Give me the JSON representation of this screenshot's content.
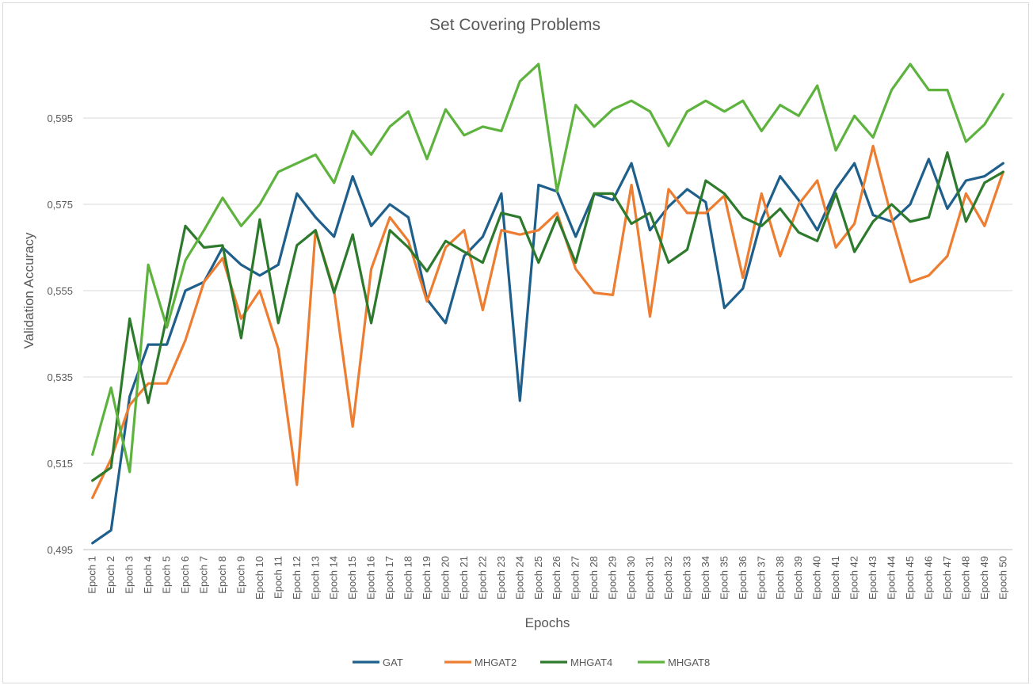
{
  "chart_data": {
    "type": "line",
    "title": "Set Covering Problems",
    "xlabel": "Epochs",
    "ylabel": "Validation Accuracy",
    "ylim": [
      0.495,
      0.6
    ],
    "yticks": [
      "0,495",
      "0,515",
      "0,535",
      "0,555",
      "0,575",
      "0,595"
    ],
    "ytick_values": [
      0.495,
      0.515,
      0.535,
      0.555,
      0.575,
      0.595
    ],
    "grid": true,
    "legend_position": "bottom",
    "categories": [
      "Epoch 1",
      "Epoch 2",
      "Epoch 3",
      "Epoch 4",
      "Epoch 5",
      "Epoch 6",
      "Epoch 7",
      "Epoch 8",
      "Epoch 9",
      "Epoch 10",
      "Epoch 11",
      "Epoch 12",
      "Epoch 13",
      "Epoch 14",
      "Epoch 15",
      "Epoch 16",
      "Epoch 17",
      "Epoch 18",
      "Epoch 19",
      "Epoch 20",
      "Epoch 21",
      "Epoch 22",
      "Epoch 23",
      "Epoch 24",
      "Epoch 25",
      "Epoch 26",
      "Epoch 27",
      "Epoch 28",
      "Epoch 29",
      "Epoch 30",
      "Epoch 31",
      "Epoch 32",
      "Epoch 33",
      "Epoch 34",
      "Epoch 35",
      "Epoch 36",
      "Epoch 37",
      "Epoch 38",
      "Epoch 39",
      "Epoch 40",
      "Epoch 41",
      "Epoch 42",
      "Epoch 43",
      "Epoch 44",
      "Epoch 45",
      "Epoch 46",
      "Epoch 47",
      "Epoch 48",
      "Epoch 49",
      "Epoch 50"
    ],
    "series": [
      {
        "name": "GAT",
        "color": "#1f5f8b",
        "values": [
          0.4965,
          0.4995,
          0.5305,
          0.5425,
          0.5425,
          0.555,
          0.557,
          0.565,
          0.561,
          0.5585,
          0.561,
          0.5775,
          0.572,
          0.5675,
          0.5815,
          0.57,
          0.575,
          0.572,
          0.553,
          0.5475,
          0.563,
          0.5675,
          0.5775,
          0.5295,
          0.5795,
          0.578,
          0.5675,
          0.5775,
          0.576,
          0.5845,
          0.569,
          0.5745,
          0.5785,
          0.5755,
          0.551,
          0.5555,
          0.5715,
          0.5815,
          0.576,
          0.569,
          0.5785,
          0.5845,
          0.5725,
          0.571,
          0.575,
          0.5855,
          0.574,
          0.5805,
          0.5815,
          0.5845
        ]
      },
      {
        "name": "MHGAT2",
        "color": "#ed7d31",
        "values": [
          0.507,
          0.516,
          0.5285,
          0.5335,
          0.5335,
          0.5435,
          0.557,
          0.5625,
          0.5485,
          0.555,
          0.5415,
          0.51,
          0.569,
          0.555,
          0.5235,
          0.56,
          0.572,
          0.5665,
          0.5525,
          0.565,
          0.569,
          0.5505,
          0.569,
          0.568,
          0.569,
          0.573,
          0.56,
          0.5545,
          0.554,
          0.5795,
          0.549,
          0.5785,
          0.573,
          0.573,
          0.577,
          0.558,
          0.5775,
          0.563,
          0.575,
          0.5805,
          0.565,
          0.5705,
          0.5885,
          0.572,
          0.557,
          0.5585,
          0.563,
          0.5775,
          0.57,
          0.5825
        ]
      },
      {
        "name": "MHGAT4",
        "color": "#2d7a2d",
        "values": [
          0.511,
          0.514,
          0.5485,
          0.529,
          0.549,
          0.57,
          0.565,
          0.5655,
          0.544,
          0.5715,
          0.5475,
          0.5655,
          0.569,
          0.5545,
          0.568,
          0.5475,
          0.569,
          0.565,
          0.5595,
          0.5665,
          0.564,
          0.5615,
          0.573,
          0.572,
          0.5615,
          0.572,
          0.5615,
          0.5775,
          0.5775,
          0.5705,
          0.573,
          0.5615,
          0.5645,
          0.5805,
          0.5775,
          0.572,
          0.57,
          0.574,
          0.5685,
          0.5665,
          0.5775,
          0.564,
          0.571,
          0.575,
          0.571,
          0.572,
          0.587,
          0.571,
          0.58,
          0.5825
        ]
      },
      {
        "name": "MHGAT8",
        "color": "#5db33e",
        "values": [
          0.517,
          0.5325,
          0.513,
          0.561,
          0.5465,
          0.562,
          0.569,
          0.5765,
          0.57,
          0.575,
          0.5825,
          0.5845,
          0.5865,
          0.58,
          0.592,
          0.5865,
          0.593,
          0.5965,
          0.5855,
          0.597,
          0.591,
          0.593,
          0.592,
          0.6035,
          0.6075,
          0.578,
          0.598,
          0.593,
          0.597,
          0.599,
          0.5965,
          0.5885,
          0.5965,
          0.599,
          0.5965,
          0.599,
          0.592,
          0.598,
          0.5955,
          0.6025,
          0.5875,
          0.5955,
          0.5905,
          0.6015,
          0.6075,
          0.6015,
          0.6015,
          0.5895,
          0.5935,
          0.6005
        ]
      }
    ]
  }
}
